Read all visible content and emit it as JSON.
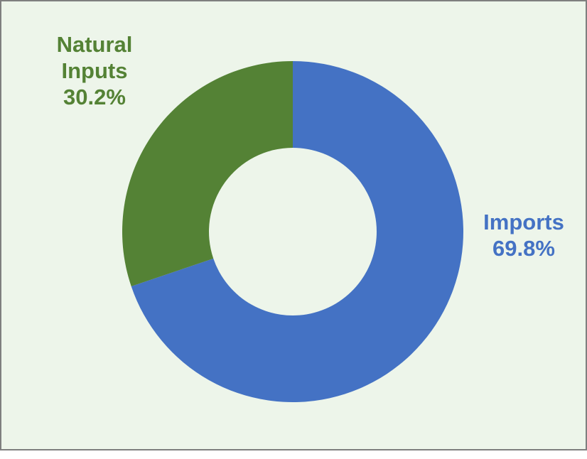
{
  "chart_data": {
    "type": "pie",
    "variant": "donut",
    "slices": [
      {
        "label": "Imports",
        "value": 69.8,
        "display": "69.8%",
        "color": "#4472c4"
      },
      {
        "label": "Natural Inputs",
        "value": 30.2,
        "display": "30.2%",
        "color": "#548235"
      }
    ],
    "legend": "none",
    "background": "#edf5ea"
  },
  "labels": {
    "natural_line1": "Natural",
    "natural_line2": "Inputs",
    "natural_pct": "30.2%",
    "imports_line1": "Imports",
    "imports_pct": "69.8%"
  }
}
